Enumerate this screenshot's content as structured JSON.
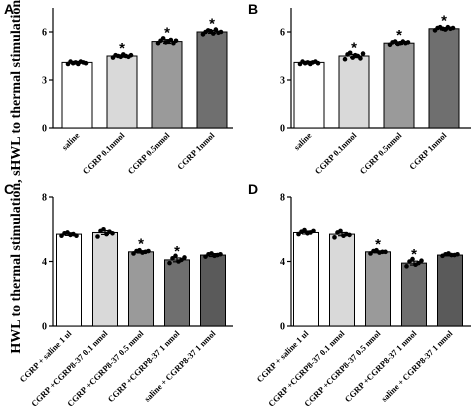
{
  "ylabel": {
    "top": "HWL to thermal stimulation, s",
    "bottom": "HWL to thermal stimulation, s"
  },
  "chart_data": [
    {
      "panel": "A",
      "type": "bar",
      "categories": [
        "saline",
        "CGRP 0.1nmol",
        "CGRP 0.5nmol",
        "CGRP 1nmol"
      ],
      "values": [
        4.1,
        4.5,
        5.4,
        6.0
      ],
      "errors": [
        0.06,
        0.07,
        0.12,
        0.09
      ],
      "significant": [
        false,
        true,
        true,
        true
      ],
      "points": [
        [
          4.0,
          4.15,
          4.05,
          4.1,
          4.0,
          4.15,
          4.1,
          4.05
        ],
        [
          4.4,
          4.55,
          4.5,
          4.45,
          4.6,
          4.5,
          4.45,
          4.55
        ],
        [
          5.3,
          5.45,
          5.6,
          5.35,
          5.4,
          5.5,
          5.3,
          5.45
        ],
        [
          5.85,
          6.0,
          6.1,
          6.05,
          5.9,
          6.15,
          5.95,
          6.0
        ]
      ],
      "colors": [
        "#ffffff",
        "#d9d9d9",
        "#9a9a9a",
        "#6f6f6f"
      ],
      "ylim": [
        0,
        7.5
      ],
      "yticks": [
        0,
        3,
        6
      ]
    },
    {
      "panel": "B",
      "type": "bar",
      "categories": [
        "saline",
        "CGRP 0.1nmol",
        "CGRP 0.5nmol",
        "CGRP 1nmol"
      ],
      "values": [
        4.1,
        4.5,
        5.3,
        6.2
      ],
      "errors": [
        0.06,
        0.1,
        0.08,
        0.07
      ],
      "significant": [
        false,
        true,
        true,
        true
      ],
      "points": [
        [
          4.0,
          4.15,
          4.05,
          4.1,
          4.0,
          4.1,
          4.15,
          4.05
        ],
        [
          4.3,
          4.6,
          4.7,
          4.4,
          4.55,
          4.5,
          4.35,
          4.65
        ],
        [
          5.2,
          5.35,
          5.4,
          5.25,
          5.3,
          5.4,
          5.3,
          5.35
        ],
        [
          6.1,
          6.25,
          6.3,
          6.2,
          6.15,
          6.3,
          6.2,
          6.25
        ]
      ],
      "colors": [
        "#ffffff",
        "#d9d9d9",
        "#9a9a9a",
        "#6f6f6f"
      ],
      "ylim": [
        0,
        7.5
      ],
      "yticks": [
        0,
        3,
        6
      ]
    },
    {
      "panel": "C",
      "type": "bar",
      "categories": [
        "CGRP + saline 1 ul",
        "CGRP +CGRP8-37 0.1 nmol",
        "CGRP +CGRP8-37 0.5 nmol",
        "CGRP +CGRP8-37 1 nmol",
        "saline + CGRP8-37 1 nmol"
      ],
      "values": [
        5.7,
        5.8,
        4.6,
        4.1,
        4.4
      ],
      "errors": [
        0.08,
        0.12,
        0.07,
        0.12,
        0.09
      ],
      "significant": [
        false,
        false,
        true,
        true,
        false
      ],
      "points": [
        [
          5.6,
          5.75,
          5.8,
          5.65,
          5.7,
          5.6
        ],
        [
          5.55,
          5.9,
          6.0,
          5.7,
          5.85,
          5.75
        ],
        [
          4.5,
          4.65,
          4.7,
          4.55,
          4.6,
          4.65
        ],
        [
          3.9,
          4.2,
          4.35,
          4.0,
          4.1,
          4.25
        ],
        [
          4.3,
          4.45,
          4.5,
          4.35,
          4.4,
          4.45
        ]
      ],
      "colors": [
        "#ffffff",
        "#d9d9d9",
        "#9a9a9a",
        "#6f6f6f",
        "#5a5a5a"
      ],
      "ylim": [
        0,
        8
      ],
      "yticks": [
        0,
        4,
        8
      ]
    },
    {
      "panel": "D",
      "type": "bar",
      "categories": [
        "CGRP + saline 1 ul",
        "CGRP +CGRP8-37 0.1 nmol",
        "CGRP +CGRP8-37 0.5 nmol",
        "CGRP +CGRP8-37 1 nmol",
        "saline + CGRP8-37 1 nmol"
      ],
      "values": [
        5.8,
        5.7,
        4.6,
        3.9,
        4.4
      ],
      "errors": [
        0.09,
        0.1,
        0.06,
        0.12,
        0.05
      ],
      "significant": [
        false,
        false,
        true,
        true,
        false
      ],
      "points": [
        [
          5.7,
          5.85,
          5.95,
          5.75,
          5.8,
          5.9
        ],
        [
          5.5,
          5.8,
          5.9,
          5.6,
          5.7,
          5.65
        ],
        [
          4.5,
          4.65,
          4.7,
          4.55,
          4.6,
          4.6
        ],
        [
          3.7,
          4.0,
          4.15,
          3.8,
          3.9,
          4.05
        ],
        [
          4.35,
          4.45,
          4.5,
          4.4,
          4.4,
          4.45
        ]
      ],
      "colors": [
        "#ffffff",
        "#d9d9d9",
        "#9a9a9a",
        "#6f6f6f",
        "#5a5a5a"
      ],
      "ylim": [
        0,
        8
      ],
      "yticks": [
        0,
        4,
        8
      ]
    }
  ]
}
